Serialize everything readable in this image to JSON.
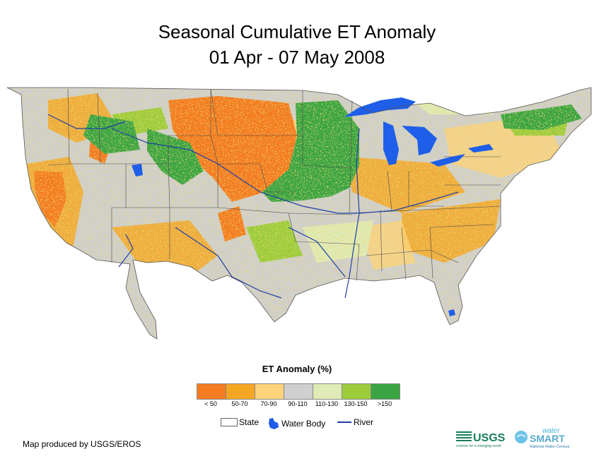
{
  "title": {
    "line1": "Seasonal Cumulative ET Anomaly",
    "line2": "01 Apr - 07 May 2008"
  },
  "legend": {
    "title": "ET Anomaly (%)",
    "classes": [
      {
        "label": "< 50",
        "color": "#f47b20"
      },
      {
        "label": "50-70",
        "color": "#f5a623"
      },
      {
        "label": "70-90",
        "color": "#fdd27a"
      },
      {
        "label": "90-110",
        "color": "#cfcfcf"
      },
      {
        "label": "110-130",
        "color": "#dfeab5"
      },
      {
        "label": "130-150",
        "color": "#9ccc3c"
      },
      {
        "label": ">150",
        "color": "#3aa442"
      }
    ]
  },
  "map_key": {
    "state": "State",
    "water_body": "Water Body",
    "river": "River",
    "water_color": "#1e5ee8",
    "river_color": "#1f3fa5"
  },
  "credit": "Map produced by USGS/EROS",
  "logos": {
    "usgs": "USGS",
    "usgs_tagline": "science for a changing world",
    "watersmart_top": "water",
    "watersmart_main": "SMART",
    "watersmart_tagline": "National Water Census"
  }
}
